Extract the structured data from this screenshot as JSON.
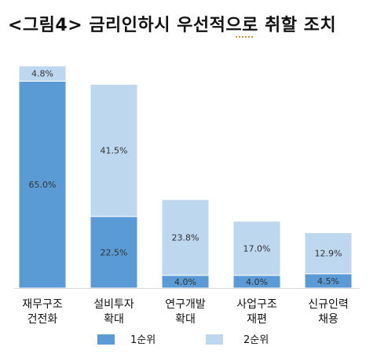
{
  "title": "<그림4> 금리인하시 우선적으로 취할 조치",
  "chart_data": {
    "type": "bar",
    "stacked": true,
    "title": "<그림4> 금리인하시 우선적으로 취할 조치",
    "categories": [
      [
        "재무구조",
        "건전화"
      ],
      [
        "설비투자",
        "확대"
      ],
      [
        "연구개발",
        "확대"
      ],
      [
        "사업구조",
        "재편"
      ],
      [
        "신규인력",
        "채용"
      ]
    ],
    "series": [
      {
        "name": "1순위",
        "values": [
          65.0,
          22.5,
          4.0,
          4.0,
          4.5
        ],
        "color": "#5b9bd5"
      },
      {
        "name": "2순위",
        "values": [
          4.8,
          41.5,
          23.8,
          17.0,
          12.9
        ],
        "color": "#bdd7ee"
      }
    ],
    "value_suffix": "%",
    "legend_position": "bottom",
    "grid": false
  }
}
